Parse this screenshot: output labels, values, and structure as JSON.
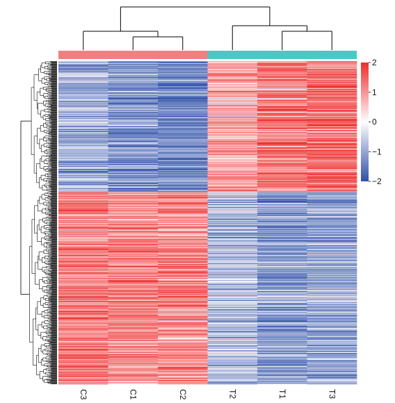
{
  "chart_data": {
    "type": "heatmap",
    "columns": [
      "C3",
      "C1",
      "C2",
      "T2",
      "T1",
      "T3"
    ],
    "column_groups": [
      {
        "members": [
          "C3",
          "C1",
          "C2"
        ],
        "color": "#F08080"
      },
      {
        "members": [
          "T2",
          "T1",
          "T3"
        ],
        "color": "#48C9C4"
      }
    ],
    "color_scale": {
      "min": -2,
      "max": 2,
      "low_color": "#2E4FA8",
      "mid_color": "#FFFFFF",
      "high_color": "#EE2B2B",
      "ticks": [
        "2",
        "1",
        "0",
        "−1",
        "−2"
      ]
    },
    "row_count": 600,
    "row_clusters": [
      {
        "fraction": 0.405,
        "means": [
          -0.9,
          -1.2,
          -1.4,
          0.8,
          1.2,
          1.4
        ]
      },
      {
        "fraction": 0.595,
        "means": [
          1.2,
          1.1,
          1.1,
          -0.8,
          -1.1,
          -1.0
        ]
      }
    ],
    "column_dendrogram": "((C3,(C1,C2)),(T2,(T1,T3)))",
    "grid": false,
    "legend_placement": "right"
  }
}
